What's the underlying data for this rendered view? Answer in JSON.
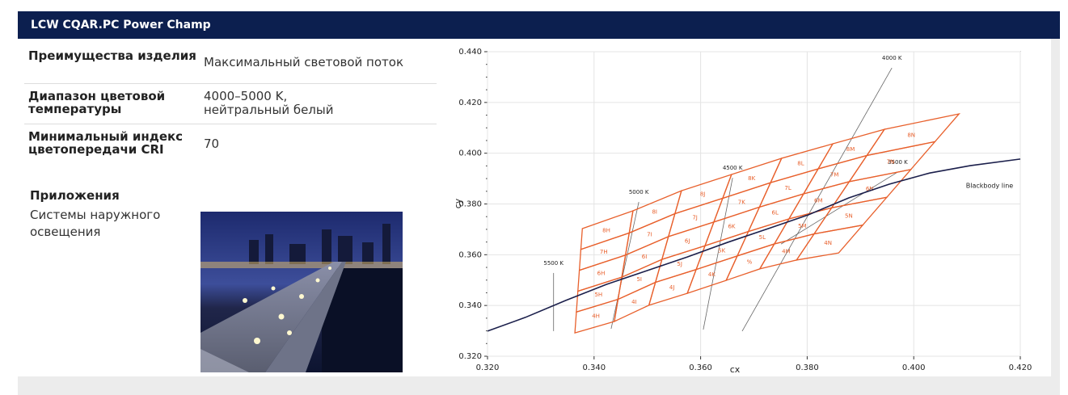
{
  "header": {
    "title": "LCW CQAR.PC Power Champ"
  },
  "specs": [
    {
      "label": "Преимущества изделия",
      "value": "Максимальный световой поток"
    },
    {
      "label": "Диапазон цветовой температуры",
      "value": "4000–5000 K, нейтральный белый"
    },
    {
      "label": "Минимальный индекс цветопередачи CRI",
      "value": "70"
    }
  ],
  "applications": {
    "title": "Приложения",
    "text": "Системы наружного освещения"
  },
  "chart_data": {
    "type": "chromaticity",
    "xlabel": "cx",
    "ylabel": "cy",
    "xlim": [
      0.32,
      0.42
    ],
    "ylim": [
      0.32,
      0.44
    ],
    "xticks": [
      {
        "value": 0.32,
        "label": "0.320"
      },
      {
        "value": 0.34,
        "label": "0.340"
      },
      {
        "value": 0.36,
        "label": "0.360"
      },
      {
        "value": 0.38,
        "label": "0.380"
      },
      {
        "value": 0.4,
        "label": "0.400"
      },
      {
        "value": 0.42,
        "label": "0.420"
      }
    ],
    "yticks": [
      {
        "value": 0.32,
        "label": "0.320"
      },
      {
        "value": 0.34,
        "label": "0.340"
      },
      {
        "value": 0.36,
        "label": "0.360"
      },
      {
        "value": 0.38,
        "label": "0.380"
      },
      {
        "value": 0.4,
        "label": "0.400"
      },
      {
        "value": 0.42,
        "label": "0.420"
      },
      {
        "value": 0.44,
        "label": "0.440"
      }
    ],
    "grid": true,
    "blackbody": {
      "name": "Blackbody line",
      "color": "#1b1f4b",
      "x": [
        0.32,
        0.3271,
        0.3347,
        0.3423,
        0.3499,
        0.3575,
        0.3651,
        0.3727,
        0.3802,
        0.3878,
        0.3954,
        0.403,
        0.4106,
        0.42
      ],
      "y": [
        0.3299,
        0.3353,
        0.342,
        0.3483,
        0.3537,
        0.3591,
        0.3649,
        0.3703,
        0.3757,
        0.3824,
        0.3878,
        0.3922,
        0.3951,
        0.3977
      ]
    },
    "isotherms": [
      {
        "name": "5500 K",
        "x": [
          0.3324,
          0.3324
        ],
        "y": [
          0.3299,
          0.3528
        ]
      },
      {
        "name": "5000 K",
        "x": [
          0.3432,
          0.3484
        ],
        "y": [
          0.3308,
          0.3808
        ]
      },
      {
        "name": "4500 K",
        "x": [
          0.3605,
          0.366
        ],
        "y": [
          0.3305,
          0.3903
        ]
      },
      {
        "name": "4000 K",
        "x": [
          0.3678,
          0.3959
        ],
        "y": [
          0.3299,
          0.4336
        ]
      },
      {
        "name": "3500 K",
        "x": [
          0.3751,
          0.397
        ],
        "y": [
          0.3642,
          0.3926
        ]
      }
    ],
    "bins": {
      "color": "#e8602c",
      "top": {
        "x": [
          0.3378,
          0.3473,
          0.3564,
          0.3658,
          0.3752,
          0.3848,
          0.3945,
          0.4085
        ],
        "y": [
          0.3703,
          0.3773,
          0.3852,
          0.3916,
          0.398,
          0.4037,
          0.4094,
          0.4155
        ]
      },
      "bottom": {
        "x": [
          0.3364,
          0.3438,
          0.3503,
          0.3575,
          0.3648,
          0.3711,
          0.378,
          0.3859
        ],
        "y": [
          0.3292,
          0.3337,
          0.3401,
          0.3448,
          0.3499,
          0.3544,
          0.3579,
          0.3607
        ]
      },
      "labels": [
        [
          "4H",
          "4I",
          "4J",
          "4K",
          "%",
          "4M",
          "4N"
        ],
        [
          "5H",
          "5I",
          "5J",
          "5K",
          "5L",
          "5M",
          "5N"
        ],
        [
          "6H",
          "6I",
          "6J",
          "6K",
          "6L",
          "6M",
          "6N"
        ],
        [
          "7H",
          "7I",
          "7J",
          "7K",
          "7L",
          "7M",
          "7N"
        ],
        [
          "8H",
          "8I",
          "8J",
          "8K",
          "8L",
          "8M",
          "8N"
        ]
      ]
    }
  }
}
